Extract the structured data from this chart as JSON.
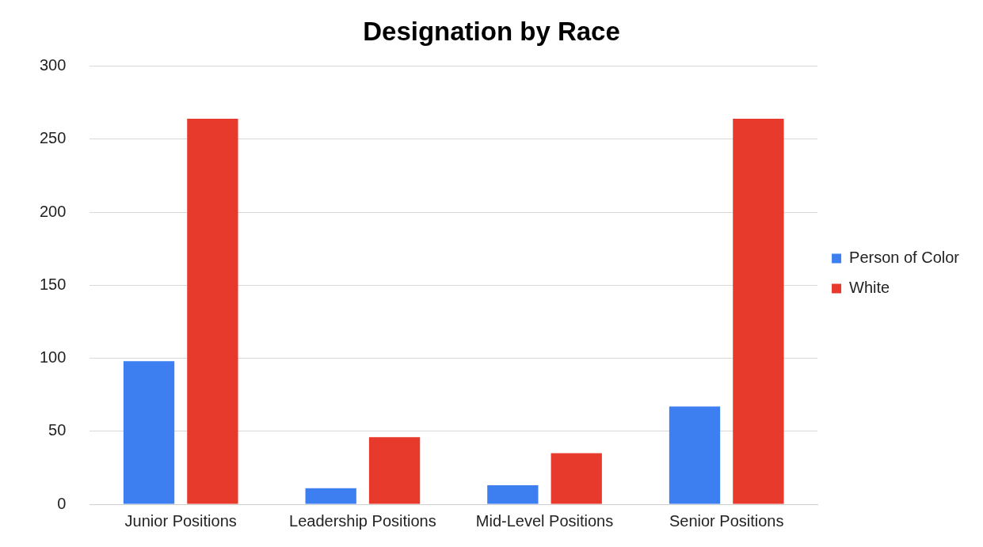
{
  "chart_data": {
    "type": "bar",
    "title": "Designation by Race",
    "categories": [
      "Junior Positions",
      "Leadership Positions",
      "Mid-Level Positions",
      "Senior Positions"
    ],
    "series": [
      {
        "name": "Person of Color",
        "color": "#3d7ff0",
        "values": [
          98,
          11,
          13,
          67
        ]
      },
      {
        "name": "White",
        "color": "#e83a2c",
        "values": [
          264,
          46,
          35,
          264
        ]
      }
    ],
    "ylim": [
      0,
      300
    ],
    "yticks": [
      0,
      50,
      100,
      150,
      200,
      250,
      300
    ],
    "grid": "y",
    "legend": "right"
  }
}
